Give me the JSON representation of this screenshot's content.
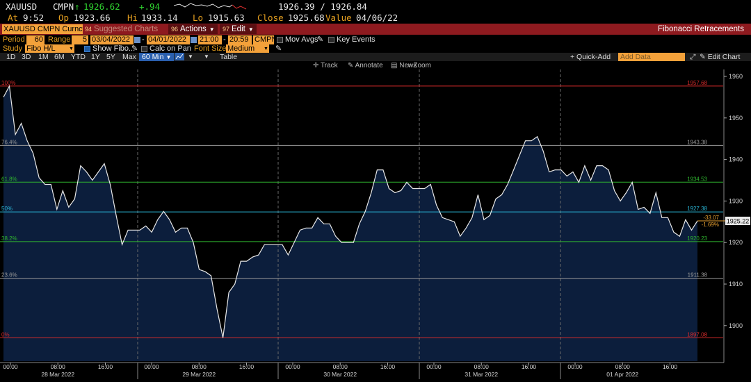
{
  "quote": {
    "ticker": "XAUUSD",
    "source": "CMPN",
    "last_arrow": "↑",
    "last": "1926.62",
    "change": "+.94",
    "bid_ask": "1926.39 / 1926.84",
    "at_label": "At",
    "at": "9:52",
    "op_label": "Op",
    "op": "1923.66",
    "hi_label": "Hi",
    "hi": "1933.14",
    "lo_label": "Lo",
    "lo": "1915.63",
    "close_label": "Close",
    "close": "1925.68",
    "value_label": "Value",
    "value_date": "04/06/22"
  },
  "titlebar": {
    "security": "XAUUSD CMPN Curncy",
    "suggested_num": "94",
    "suggested": "Suggested Charts",
    "actions_num": "96",
    "actions": "Actions",
    "edit_num": "97",
    "edit": "Edit",
    "study_title": "Fibonacci Retracements"
  },
  "settings": {
    "period_label": "Period",
    "period_value": "60",
    "range_label": "Range",
    "range_value": "5",
    "start_date": "03/04/2022",
    "end_date": "04/01/2022",
    "start_time": "21:00",
    "end_time": "20:59",
    "source": "CMPN",
    "mov_avgs": "Mov Avgs",
    "key_events": "Key Events",
    "study_label": "Study",
    "study_value": "Fibo H/L",
    "show_fibo": "Show Fibo...",
    "calc_on_pan": "Calc on Pan",
    "font_size_label": "Font Size",
    "font_size_value": "Medium"
  },
  "timeframes": [
    "1D",
    "3D",
    "1M",
    "6M",
    "YTD",
    "1Y",
    "5Y",
    "Max"
  ],
  "tf_selected": "60 Min",
  "tf_table": "Table",
  "quick_add": "+ Quick-Add",
  "add_data": "Add Data",
  "edit_chart": "Edit Chart",
  "chart_tools": {
    "track": "Track",
    "annotate": "Annotate",
    "news": "News",
    "zoom": "Zoom"
  },
  "colors": {
    "orange": "#f3a13a",
    "title_red": "#8e1a1f",
    "area_fill": "#0c1e3c",
    "line": "#e8e8e8"
  },
  "chart_data": {
    "type": "area",
    "y_ticks": [
      1900,
      1910,
      1920,
      1930,
      1940,
      1950,
      1960
    ],
    "ylim": [
      1891,
      1962
    ],
    "y_unit": "USD",
    "last_value_label": "1925.22",
    "change_label": "-33.07",
    "change_pct_label": "-1.69%",
    "fib_levels": [
      {
        "pct": "100%",
        "value": 1957.68,
        "label": "1957.68",
        "color": "#d62b2b"
      },
      {
        "pct": "76.4%",
        "value": 1943.38,
        "label": "1943.38",
        "color": "#9a9a9a"
      },
      {
        "pct": "61.8%",
        "value": 1934.53,
        "label": "1934.53",
        "color": "#2fb42f"
      },
      {
        "pct": "50%",
        "value": 1927.38,
        "label": "1927.38",
        "color": "#2ab6d6"
      },
      {
        "pct": "38.2%",
        "value": 1920.23,
        "label": "1920.23",
        "color": "#2fb42f"
      },
      {
        "pct": "23.6%",
        "value": 1911.38,
        "label": "1911.38",
        "color": "#9a9a9a"
      },
      {
        "pct": "0%",
        "value": 1897.08,
        "label": "1897.08",
        "color": "#d62b2b"
      }
    ],
    "x_tick_labels": [
      "00:00",
      "08:00",
      "16:00",
      "00:00",
      "08:00",
      "16:00",
      "00:00",
      "08:00",
      "16:00",
      "00:00",
      "08:00",
      "16:00",
      "00:00",
      "08:00",
      "16:00"
    ],
    "day_labels": [
      "28 Mar 2022",
      "29 Mar 2022",
      "30 Mar 2022",
      "31 Mar 2022",
      "01 Apr 2022"
    ],
    "series": [
      {
        "values": [
          1955.0,
          1957.68,
          1946.0,
          1948.7,
          1944.5,
          1941.5,
          1935.6,
          1934.0,
          1934.0,
          1928.0,
          1932.5,
          1928.5,
          1930.5,
          1938.5,
          1937.0,
          1935.0,
          1937.0,
          1939.0,
          1934.0,
          1926.5,
          1919.5,
          1923.0,
          1923.0,
          1923.0,
          1924.0,
          1922.5,
          1925.5,
          1927.5,
          1925.5,
          1922.5,
          1923.5,
          1923.5,
          1920.0,
          1913.5,
          1913.0,
          1912.0,
          1904.0,
          1897.08,
          1908.0,
          1910.0,
          1915.5,
          1915.5,
          1916.5,
          1917.0,
          1919.5,
          1919.5,
          1919.5,
          1919.5,
          1917.0,
          1920.0,
          1923.0,
          1923.5,
          1923.5,
          1926.0,
          1924.5,
          1924.5,
          1921.5,
          1920.0,
          1920.0,
          1920.0,
          1924.5,
          1927.5,
          1932.0,
          1937.5,
          1937.5,
          1933.0,
          1932.0,
          1932.5,
          1934.5,
          1933.0,
          1933.0,
          1933.0,
          1934.0,
          1929.0,
          1926.0,
          1925.5,
          1925.0,
          1921.5,
          1923.5,
          1926.0,
          1931.5,
          1925.5,
          1926.5,
          1930.5,
          1931.5,
          1934.0,
          1937.5,
          1941.0,
          1944.5,
          1944.5,
          1945.5,
          1942.0,
          1937.0,
          1937.5,
          1937.5,
          1936.0,
          1937.0,
          1934.5,
          1938.5,
          1935.0,
          1938.5,
          1938.5,
          1937.5,
          1932.5,
          1930.0,
          1932.0,
          1934.5,
          1928.0,
          1928.5,
          1927.0,
          1932.0,
          1926.0,
          1926.0,
          1922.5,
          1921.5,
          1925.5,
          1923.0,
          1925.22
        ]
      }
    ]
  }
}
